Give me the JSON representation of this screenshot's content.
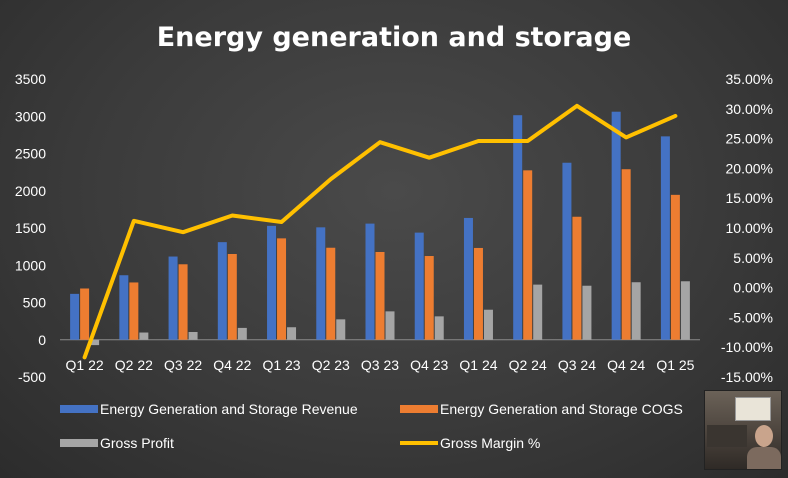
{
  "chart_data": {
    "type": "bar+line",
    "title": "Energy generation and storage",
    "categories": [
      "Q1 22",
      "Q2 22",
      "Q3 22",
      "Q4 22",
      "Q1 23",
      "Q2 23",
      "Q3 23",
      "Q4 23",
      "Q1 24",
      "Q2 24",
      "Q3 24",
      "Q4 24",
      "Q1 25"
    ],
    "series": [
      {
        "name": "Energy Generation and Storage Revenue",
        "type": "bar",
        "axis": "left",
        "color": "#4472c4",
        "values": [
          616,
          866,
          1117,
          1310,
          1529,
          1509,
          1559,
          1438,
          1635,
          3014,
          2376,
          3061,
          2730
        ]
      },
      {
        "name": "Energy Generation and Storage COGS",
        "type": "bar",
        "axis": "left",
        "color": "#ed7d31",
        "values": [
          688,
          769,
          1013,
          1151,
          1361,
          1235,
          1178,
          1124,
          1232,
          2274,
          1651,
          2289,
          1945
        ]
      },
      {
        "name": "Gross Profit",
        "type": "bar",
        "axis": "left",
        "color": "#a5a5a5",
        "values": [
          -72,
          97,
          104,
          159,
          168,
          274,
          381,
          314,
          403,
          740,
          725,
          772,
          785
        ]
      },
      {
        "name": "Gross Margin %",
        "type": "line",
        "axis": "right",
        "color": "#ffc000",
        "values": [
          -11.7,
          11.2,
          9.3,
          12.1,
          11.0,
          18.2,
          24.4,
          21.8,
          24.6,
          24.6,
          30.5,
          25.2,
          28.8
        ]
      }
    ],
    "y_left": {
      "min": -500,
      "max": 3500,
      "step": 500,
      "tick_labels": [
        "-500",
        "0",
        "500",
        "1000",
        "1500",
        "2000",
        "2500",
        "3000",
        "3500"
      ]
    },
    "y_right": {
      "min": -15,
      "max": 35,
      "step": 5,
      "tick_labels": [
        "-15.00%",
        "-10.00%",
        "-5.00%",
        "0.00%",
        "5.00%",
        "10.00%",
        "15.00%",
        "20.00%",
        "25.00%",
        "30.00%",
        "35.00%"
      ]
    },
    "grid": false,
    "legend_position": "bottom"
  }
}
